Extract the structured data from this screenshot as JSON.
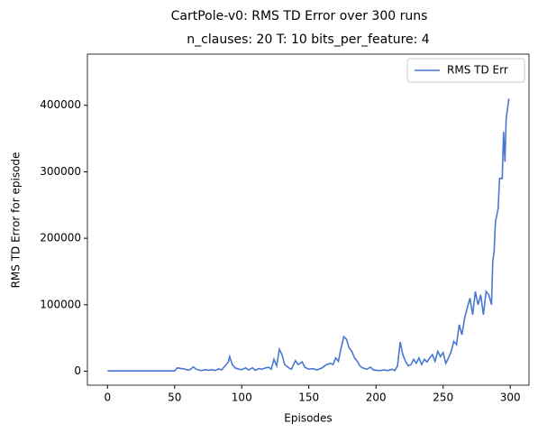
{
  "chart_data": {
    "type": "line",
    "title": "CartPole-v0: RMS TD Error over 300 runs",
    "subtitle": "n_clauses: 20 T: 10 bits_per_feature: 4",
    "xlabel": "Episodes",
    "ylabel": "RMS TD Error for episode",
    "x": [
      0,
      10,
      20,
      30,
      40,
      50,
      52,
      55,
      58,
      60,
      62,
      64,
      66,
      68,
      70,
      73,
      75,
      78,
      80,
      83,
      85,
      88,
      90,
      91,
      93,
      95,
      98,
      100,
      103,
      105,
      108,
      110,
      113,
      115,
      118,
      120,
      122,
      124,
      126,
      128,
      130,
      132,
      135,
      137,
      140,
      142,
      145,
      147,
      150,
      153,
      156,
      160,
      163,
      166,
      168,
      170,
      172,
      174,
      176,
      178,
      180,
      182,
      184,
      186,
      188,
      190,
      193,
      196,
      198,
      200,
      203,
      206,
      209,
      212,
      214,
      216,
      218,
      220,
      222,
      224,
      226,
      228,
      230,
      232,
      234,
      236,
      238,
      240,
      242,
      244,
      246,
      248,
      250,
      252,
      254,
      256,
      258,
      260,
      262,
      264,
      266,
      268,
      270,
      272,
      274,
      276,
      278,
      280,
      282,
      284,
      286,
      287,
      288,
      289,
      291,
      292,
      294,
      295,
      296,
      297,
      298,
      299
    ],
    "series": [
      {
        "name": "RMS TD Err",
        "color": "#4878cf",
        "values": [
          500,
          500,
          500,
          500,
          500,
          500,
          5000,
          4000,
          3000,
          1500,
          3000,
          6500,
          3000,
          2000,
          1000,
          2500,
          1500,
          2500,
          1000,
          3500,
          2000,
          9000,
          14000,
          22000,
          10000,
          5000,
          3000,
          2500,
          5000,
          2000,
          5000,
          1500,
          4000,
          3000,
          5000,
          6000,
          3000,
          18000,
          8000,
          33000,
          25000,
          10000,
          5000,
          3000,
          16000,
          10000,
          14000,
          6000,
          3000,
          4000,
          2000,
          5000,
          10000,
          12000,
          10000,
          20000,
          15000,
          35000,
          52000,
          48000,
          35000,
          30000,
          20000,
          15000,
          8000,
          5000,
          3000,
          6000,
          2000,
          1500,
          1000,
          2000,
          1000,
          3000,
          1000,
          8000,
          44000,
          25000,
          15000,
          8000,
          10000,
          18000,
          12000,
          20000,
          10000,
          18000,
          14000,
          20000,
          25000,
          15000,
          30000,
          22000,
          28000,
          12000,
          20000,
          30000,
          45000,
          40000,
          70000,
          55000,
          80000,
          95000,
          110000,
          85000,
          120000,
          100000,
          115000,
          85000,
          120000,
          115000,
          100000,
          165000,
          180000,
          225000,
          245000,
          290000,
          290000,
          360000,
          315000,
          380000,
          395000,
          410000
        ]
      }
    ],
    "xlim": [
      -14.95,
      313.95
    ],
    "xticks": [
      0,
      50,
      100,
      150,
      200,
      250,
      300
    ],
    "ylim": [
      -21000,
      477000
    ],
    "yticks": [
      0,
      100000,
      200000,
      300000,
      400000
    ],
    "legend": "upper right"
  }
}
